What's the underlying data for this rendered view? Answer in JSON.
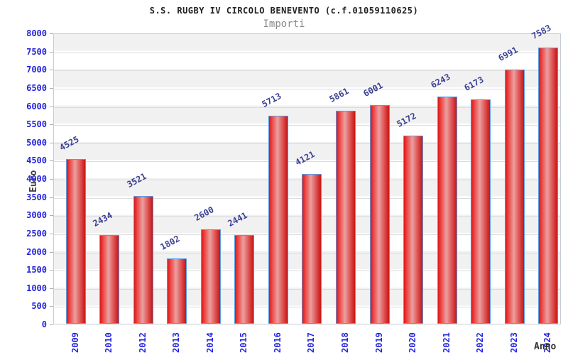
{
  "chart_data": {
    "type": "bar",
    "title": "S.S. RUGBY IV CIRCOLO BENEVENTO (c.f.01059110625)",
    "subtitle": "Importi",
    "xlabel": "Anno",
    "ylabel": "Euro",
    "categories": [
      "2009",
      "2010",
      "2012",
      "2013",
      "2014",
      "2015",
      "2016",
      "2017",
      "2018",
      "2019",
      "2020",
      "2021",
      "2022",
      "2023",
      "2024"
    ],
    "values": [
      4525,
      2434,
      3521,
      1802,
      2600,
      2441,
      5713,
      4121,
      5861,
      6001,
      5172,
      6243,
      6173,
      6991,
      7583
    ],
    "ylim": [
      0,
      8000
    ],
    "ytick_step": 500,
    "grid": true,
    "band_shading": true,
    "legend_position": "none",
    "colors": {
      "bar_fill_edge": "#cf1f1f",
      "bar_fill_mid": "#eaa0a0",
      "bar_border": "#5b9be0",
      "tick_label": "#2424dd",
      "value_label": "#3a3f94",
      "band": "#f1f1f2",
      "gridline": "#dcdcdc",
      "title": "#222222",
      "subtitle": "#8a8a8a",
      "axis_label": "#3b3b3b"
    }
  }
}
